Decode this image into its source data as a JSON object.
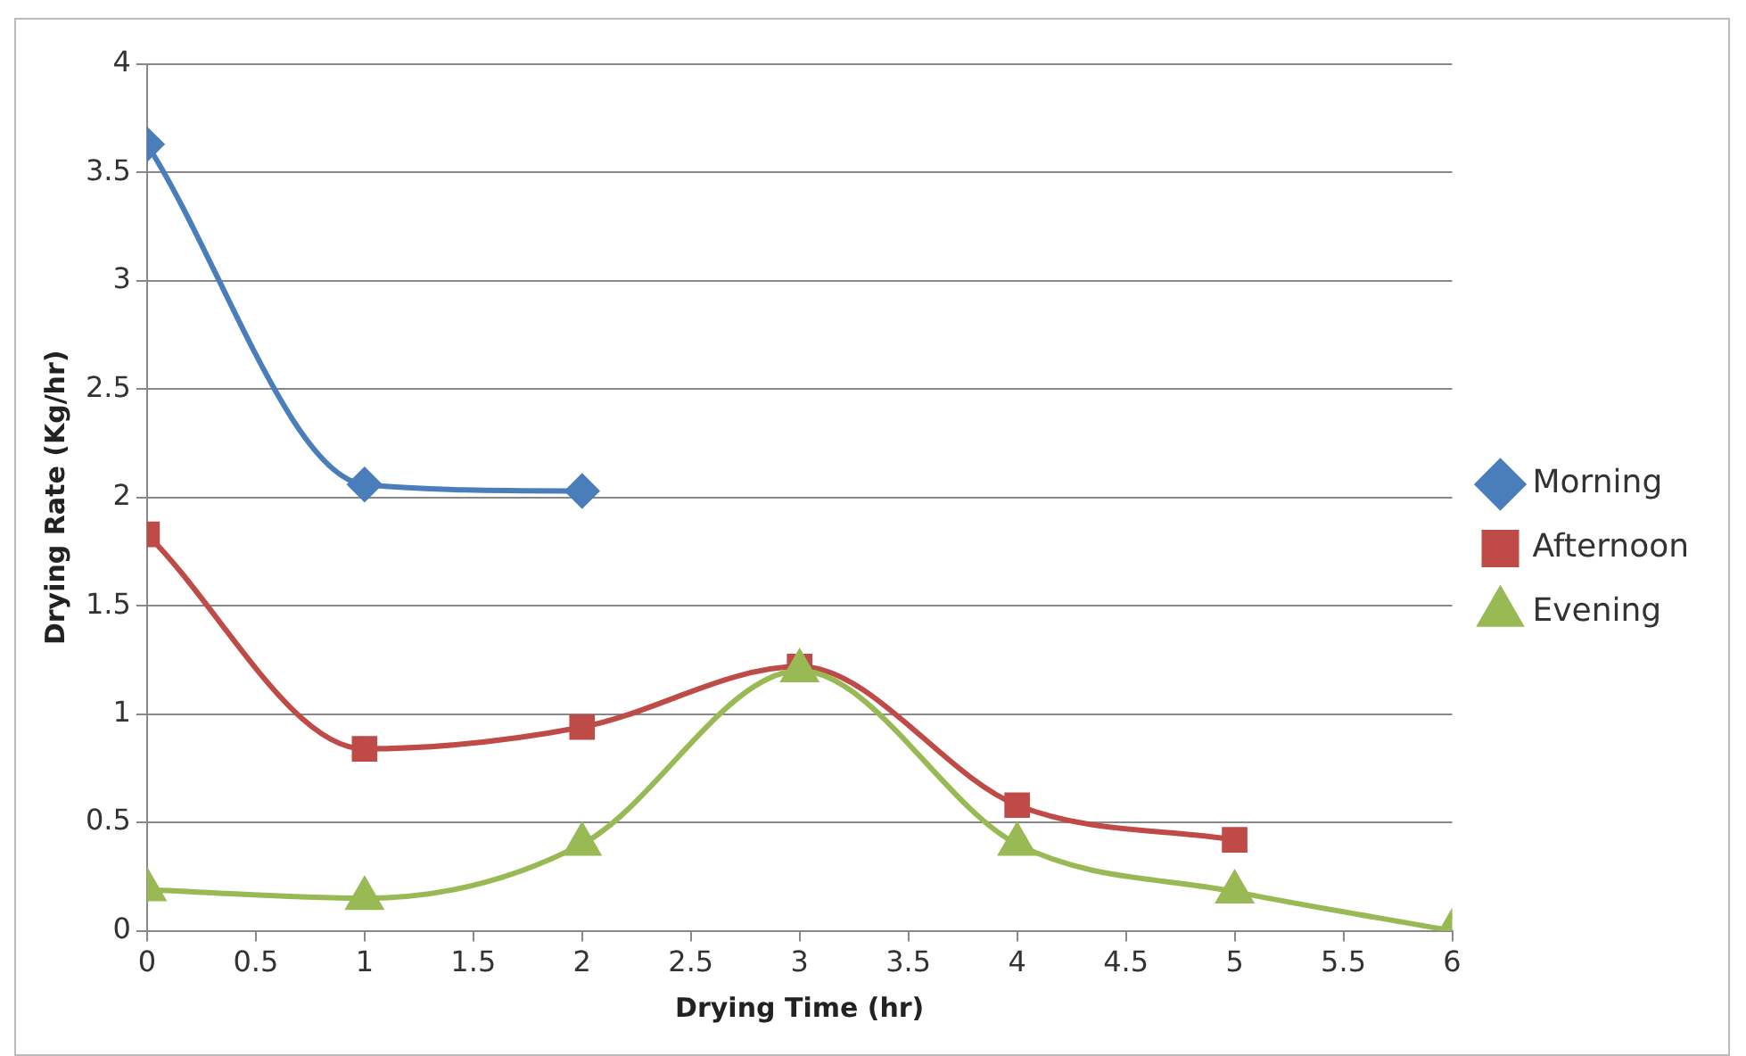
{
  "chart_data": {
    "type": "line",
    "xlabel": "Drying Time (hr)",
    "ylabel": "Drying Rate (Kg/hr)",
    "xlim": [
      0,
      6
    ],
    "xticks": [
      0,
      0.5,
      1,
      1.5,
      2,
      2.5,
      3,
      3.5,
      4,
      4.5,
      5,
      5.5,
      6
    ],
    "ylim": [
      0,
      4
    ],
    "yticks": [
      0,
      0.5,
      1,
      1.5,
      2,
      2.5,
      3,
      3.5,
      4
    ],
    "grid": "y",
    "legend": "right",
    "line_style": "solid",
    "x": [
      0,
      1,
      2,
      3,
      4,
      5,
      6
    ],
    "series": [
      {
        "name": "Morning",
        "color": "#4a7ebb",
        "marker": "diamond",
        "values": [
          3.63,
          2.06,
          2.03,
          null,
          null,
          null,
          null
        ]
      },
      {
        "name": "Afternoon",
        "color": "#be4b48",
        "marker": "square",
        "values": [
          1.83,
          0.84,
          0.94,
          1.22,
          0.58,
          0.42,
          null
        ]
      },
      {
        "name": "Evening",
        "color": "#98b954",
        "marker": "triangle",
        "values": [
          0.19,
          0.15,
          0.4,
          1.2,
          0.4,
          0.18,
          0
        ]
      }
    ]
  }
}
